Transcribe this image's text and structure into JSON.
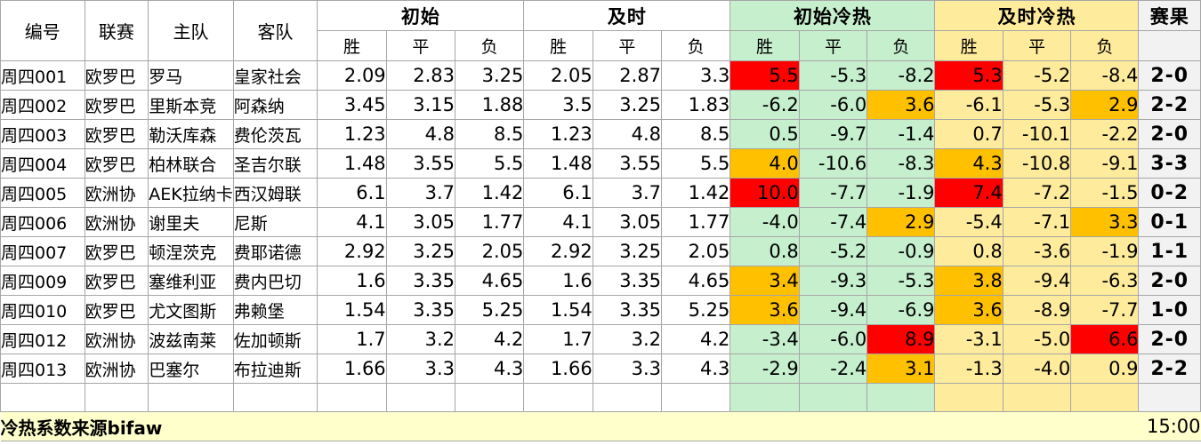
{
  "headers": {
    "code": "编号",
    "league": "联赛",
    "home": "主队",
    "away": "客队",
    "initial": "初始",
    "live": "及时",
    "initial_heat": "初始冷热",
    "live_heat": "及时冷热",
    "result": "赛果",
    "win": "胜",
    "draw": "平",
    "loss": "负"
  },
  "rows": [
    {
      "id": "周四001",
      "league": "欧罗巴",
      "home": "罗马",
      "away": "皇家社会",
      "i": [
        "2.09",
        "2.83",
        "3.25"
      ],
      "l": [
        "2.05",
        "2.87",
        "3.3"
      ],
      "ih": [
        "5.5",
        "-5.3",
        "-8.2"
      ],
      "lh": [
        "5.3",
        "-5.2",
        "-8.4"
      ],
      "ihc": [
        "r",
        "",
        ""
      ],
      "lhc": [
        "r",
        "",
        ""
      ],
      "res": "2-0"
    },
    {
      "id": "周四002",
      "league": "欧罗巴",
      "home": "里斯本竞",
      "away": "阿森纳",
      "i": [
        "3.45",
        "3.15",
        "1.88"
      ],
      "l": [
        "3.5",
        "3.25",
        "1.83"
      ],
      "ih": [
        "-6.2",
        "-6.0",
        "3.6"
      ],
      "lh": [
        "-6.1",
        "-5.3",
        "2.9"
      ],
      "ihc": [
        "",
        "",
        "o"
      ],
      "lhc": [
        "",
        "",
        "o"
      ],
      "res": "2-2"
    },
    {
      "id": "周四003",
      "league": "欧罗巴",
      "home": "勒沃库森",
      "away": "费伦茨瓦",
      "i": [
        "1.23",
        "4.8",
        "8.5"
      ],
      "l": [
        "1.23",
        "4.8",
        "8.5"
      ],
      "ih": [
        "0.5",
        "-9.7",
        "-1.4"
      ],
      "lh": [
        "0.7",
        "-10.1",
        "-2.2"
      ],
      "ihc": [
        "",
        "",
        ""
      ],
      "lhc": [
        "",
        "",
        ""
      ],
      "res": "2-0"
    },
    {
      "id": "周四004",
      "league": "欧罗巴",
      "home": "柏林联合",
      "away": "圣吉尔联",
      "i": [
        "1.48",
        "3.55",
        "5.5"
      ],
      "l": [
        "1.48",
        "3.55",
        "5.5"
      ],
      "ih": [
        "4.0",
        "-10.6",
        "-8.3"
      ],
      "lh": [
        "4.3",
        "-10.8",
        "-9.1"
      ],
      "ihc": [
        "o",
        "",
        ""
      ],
      "lhc": [
        "o",
        "",
        ""
      ],
      "res": "3-3"
    },
    {
      "id": "周四005",
      "league": "欧洲协",
      "home": "AEK拉纳卡",
      "away": "西汉姆联",
      "i": [
        "6.1",
        "3.7",
        "1.42"
      ],
      "l": [
        "6.1",
        "3.7",
        "1.42"
      ],
      "ih": [
        "10.0",
        "-7.7",
        "-1.9"
      ],
      "lh": [
        "7.4",
        "-7.2",
        "-1.5"
      ],
      "ihc": [
        "r",
        "",
        ""
      ],
      "lhc": [
        "r",
        "",
        ""
      ],
      "res": "0-2"
    },
    {
      "id": "周四006",
      "league": "欧洲协",
      "home": "谢里夫",
      "away": "尼斯",
      "i": [
        "4.1",
        "3.05",
        "1.77"
      ],
      "l": [
        "4.1",
        "3.05",
        "1.77"
      ],
      "ih": [
        "-4.0",
        "-7.4",
        "2.9"
      ],
      "lh": [
        "-5.4",
        "-7.1",
        "3.3"
      ],
      "ihc": [
        "",
        "",
        "o"
      ],
      "lhc": [
        "",
        "",
        "o"
      ],
      "res": "0-1"
    },
    {
      "id": "周四007",
      "league": "欧罗巴",
      "home": "顿涅茨克",
      "away": "费耶诺德",
      "i": [
        "2.92",
        "3.25",
        "2.05"
      ],
      "l": [
        "2.92",
        "3.25",
        "2.05"
      ],
      "ih": [
        "0.8",
        "-5.2",
        "-0.9"
      ],
      "lh": [
        "0.8",
        "-3.6",
        "-1.9"
      ],
      "ihc": [
        "",
        "",
        ""
      ],
      "lhc": [
        "",
        "",
        ""
      ],
      "res": "1-1"
    },
    {
      "id": "周四009",
      "league": "欧罗巴",
      "home": "塞维利亚",
      "away": "费内巴切",
      "i": [
        "1.6",
        "3.35",
        "4.65"
      ],
      "l": [
        "1.6",
        "3.35",
        "4.65"
      ],
      "ih": [
        "3.4",
        "-9.3",
        "-5.3"
      ],
      "lh": [
        "3.8",
        "-9.4",
        "-6.3"
      ],
      "ihc": [
        "o",
        "",
        ""
      ],
      "lhc": [
        "o",
        "",
        ""
      ],
      "res": "2-0"
    },
    {
      "id": "周四010",
      "league": "欧罗巴",
      "home": "尤文图斯",
      "away": "弗赖堡",
      "i": [
        "1.54",
        "3.35",
        "5.25"
      ],
      "l": [
        "1.54",
        "3.35",
        "5.25"
      ],
      "ih": [
        "3.6",
        "-9.4",
        "-6.9"
      ],
      "lh": [
        "3.6",
        "-8.9",
        "-7.7"
      ],
      "ihc": [
        "o",
        "",
        ""
      ],
      "lhc": [
        "o",
        "",
        ""
      ],
      "res": "1-0"
    },
    {
      "id": "周四012",
      "league": "欧洲协",
      "home": "波兹南莱",
      "away": "佐加顿斯",
      "i": [
        "1.7",
        "3.2",
        "4.2"
      ],
      "l": [
        "1.7",
        "3.2",
        "4.2"
      ],
      "ih": [
        "-3.4",
        "-6.0",
        "8.9"
      ],
      "lh": [
        "-3.1",
        "-5.0",
        "6.6"
      ],
      "ihc": [
        "",
        "",
        "r"
      ],
      "lhc": [
        "",
        "",
        "r"
      ],
      "res": "2-0"
    },
    {
      "id": "周四013",
      "league": "欧洲协",
      "home": "巴塞尔",
      "away": "布拉迪斯",
      "i": [
        "1.66",
        "3.3",
        "4.3"
      ],
      "l": [
        "1.66",
        "3.3",
        "4.3"
      ],
      "ih": [
        "-2.9",
        "-2.4",
        "3.1"
      ],
      "lh": [
        "-1.3",
        "-4.0",
        "0.9"
      ],
      "ihc": [
        "",
        "",
        "o"
      ],
      "lhc": [
        "",
        "",
        ""
      ],
      "res": "2-2"
    }
  ],
  "footer": {
    "source": "冷热系数来源bifaw",
    "time": "15:00"
  },
  "colors": {
    "green": "#c6efce",
    "yellow": "#ffeb9c",
    "red": "#ff0000",
    "orange": "#ffc000",
    "footer": "#ffffcc"
  }
}
